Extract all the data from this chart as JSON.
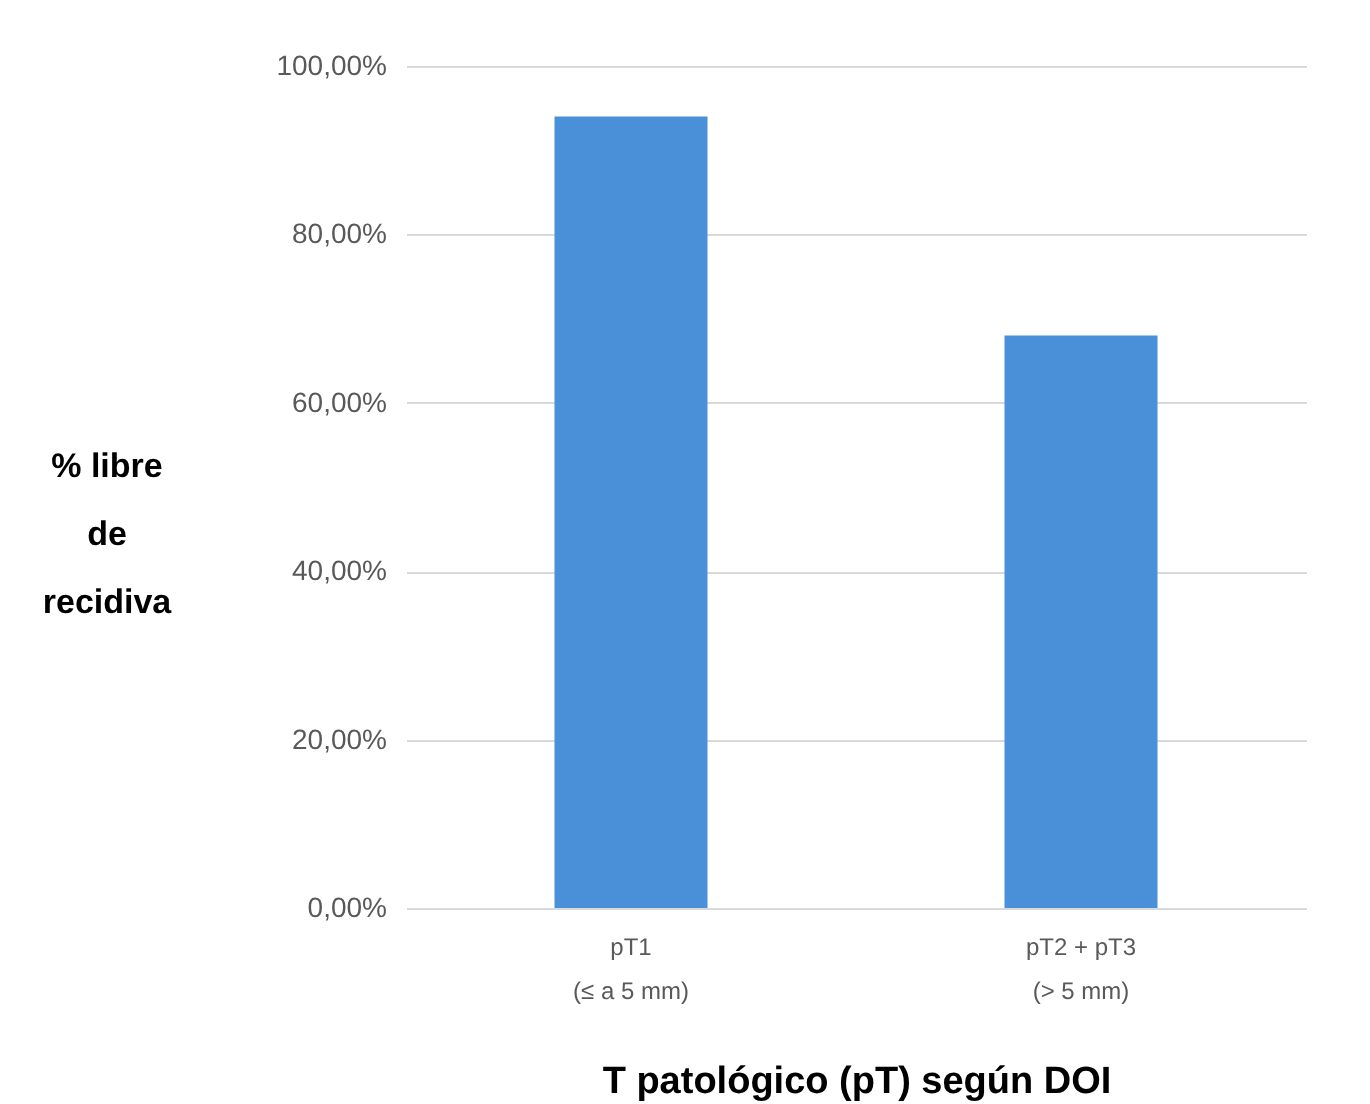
{
  "chart_data": {
    "type": "bar",
    "xlabel": "T patológico (pT) según DOI",
    "ylabel": "% libre de recidiva",
    "categories": [
      "pT1 (≤ a 5 mm)",
      "pT2 +  pT3 (> 5 mm)"
    ],
    "values": [
      94.0,
      68.0
    ],
    "color": "#4a90d9",
    "ylim": [
      0,
      100
    ],
    "yticks": [
      {
        "value": 0,
        "label": "0,00%"
      },
      {
        "value": 20,
        "label": "20,00%"
      },
      {
        "value": 40,
        "label": "40,00%"
      },
      {
        "value": 60,
        "label": "60,00%"
      },
      {
        "value": 80,
        "label": "80,00%"
      },
      {
        "value": 100,
        "label": "100,00%"
      }
    ],
    "grid": "y"
  }
}
